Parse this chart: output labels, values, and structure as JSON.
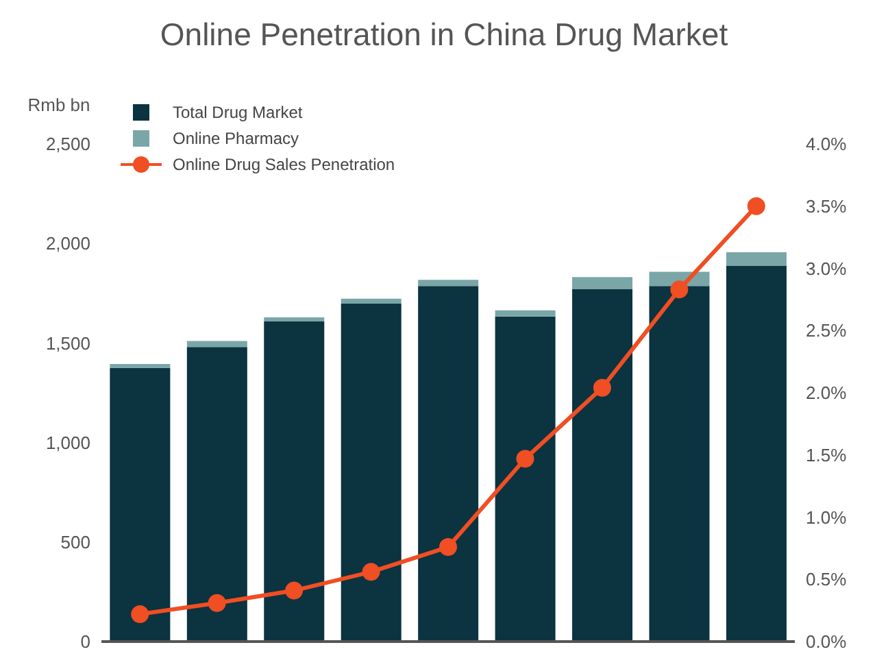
{
  "chart_data": {
    "type": "bar",
    "title": "Online Penetration in China Drug Market",
    "ylabel": "Rmb bn",
    "categories": [
      null,
      null,
      null,
      null,
      null,
      null,
      null,
      null,
      null
    ],
    "stacked": true,
    "series": [
      {
        "name": "Total Drug Market",
        "color": "#0b3340",
        "values": [
          1375,
          1480,
          1608,
          1698,
          1786,
          1633,
          1772,
          1786,
          1889
        ]
      },
      {
        "name": "Online Pharmacy",
        "color": "#7aa6a8",
        "values": [
          20,
          30,
          21,
          25,
          31,
          31,
          59,
          72,
          67
        ]
      },
      {
        "name": "Online Drug Sales Penetration",
        "color": "#f04e23",
        "type": "line",
        "axis": "y2",
        "values": [
          0.22,
          0.31,
          0.41,
          0.56,
          0.76,
          1.47,
          2.04,
          2.83,
          3.5
        ]
      }
    ],
    "ylim": [
      0,
      2500
    ],
    "yticks": [
      {
        "value": 0,
        "label": "0"
      },
      {
        "value": 500,
        "label": "500"
      },
      {
        "value": 1000,
        "label": "1,000"
      },
      {
        "value": 1500,
        "label": "1,500"
      },
      {
        "value": 2000,
        "label": "2,000"
      },
      {
        "value": 2500,
        "label": "2,500"
      }
    ],
    "y2lim": [
      0,
      4
    ],
    "y2ticks": [
      {
        "value": 0,
        "label": "0.0%"
      },
      {
        "value": 0.5,
        "label": "0.5%"
      },
      {
        "value": 1,
        "label": "1.0%"
      },
      {
        "value": 1.5,
        "label": "1.5%"
      },
      {
        "value": 2,
        "label": "2.0%"
      },
      {
        "value": 2.5,
        "label": "2.5%"
      },
      {
        "value": 3,
        "label": "3.0%"
      },
      {
        "value": 3.5,
        "label": "3.5%"
      },
      {
        "value": 4,
        "label": "4.0%"
      }
    ],
    "grid": false,
    "legend": "top left",
    "marker": "circle",
    "line_style": "solid"
  }
}
